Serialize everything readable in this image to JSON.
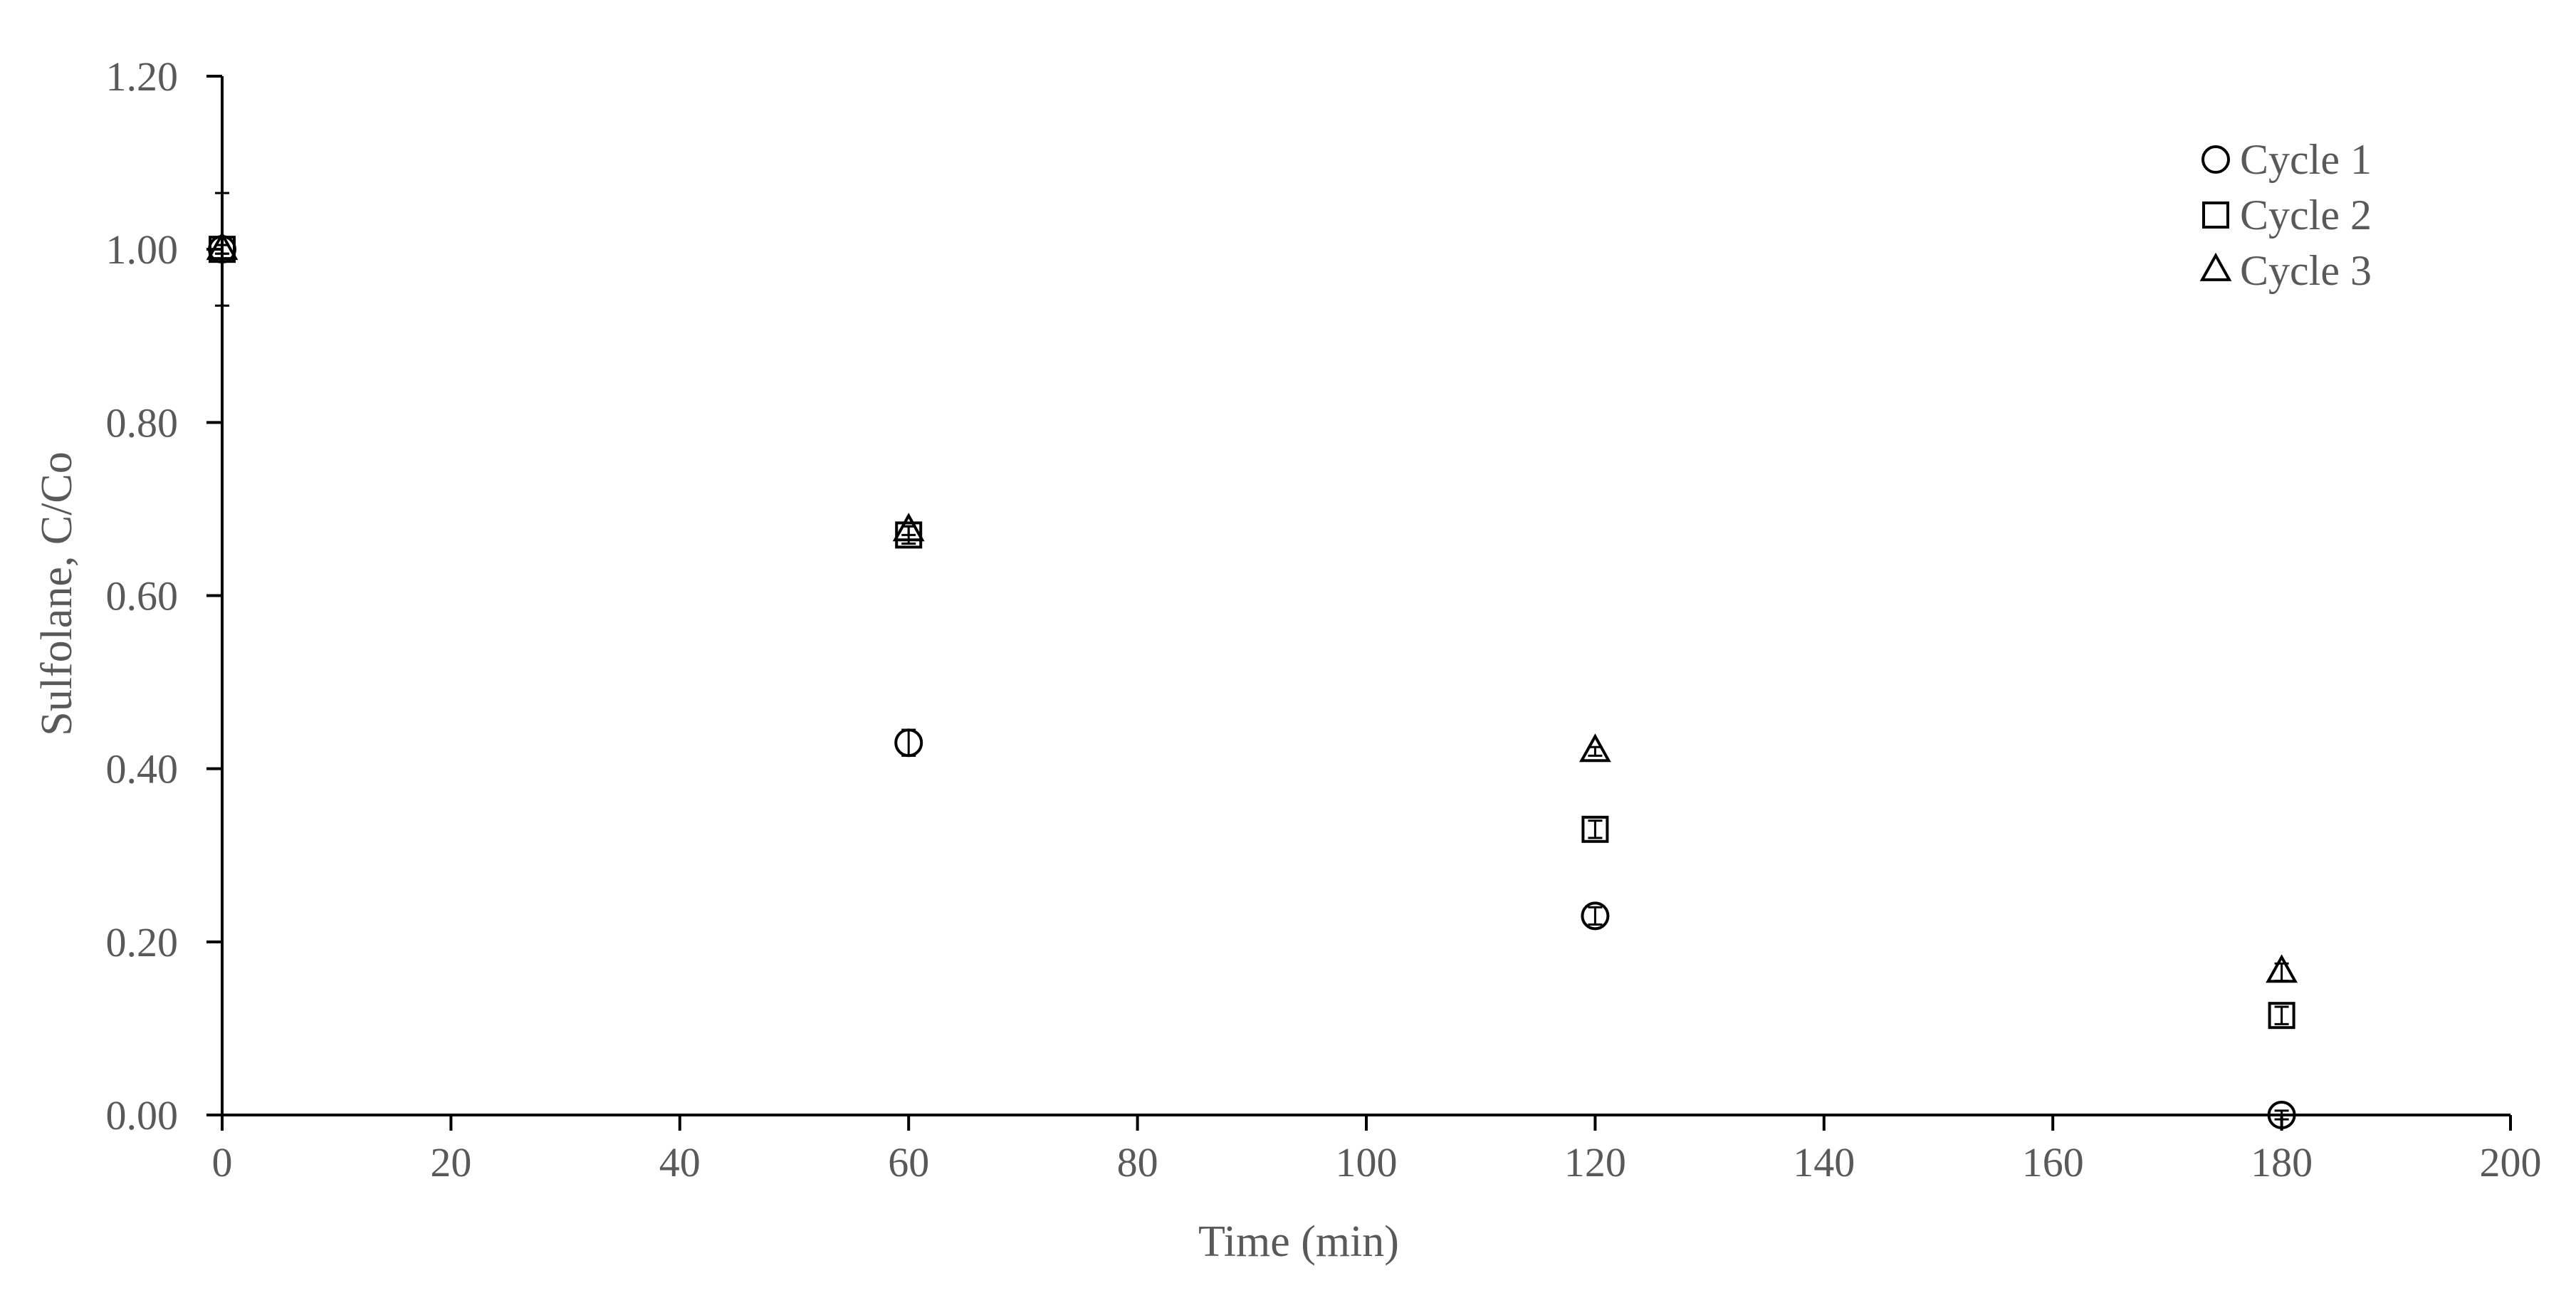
{
  "chart_data": {
    "type": "scatter",
    "title": "",
    "xlabel": "Time (min)",
    "ylabel": "Sulfolane, C/Co",
    "xlim": [
      0,
      200
    ],
    "ylim": [
      0,
      1.2
    ],
    "xticks": [
      0,
      20,
      40,
      60,
      80,
      100,
      120,
      140,
      160,
      180,
      200
    ],
    "xtick_labels": [
      "0",
      "20",
      "40",
      "60",
      "80",
      "100",
      "120",
      "140",
      "160",
      "180",
      "200"
    ],
    "yticks": [
      0,
      0.2,
      0.4,
      0.6,
      0.8,
      1.0,
      1.2
    ],
    "ytick_labels": [
      "0.00",
      "0.20",
      "0.40",
      "0.60",
      "0.80",
      "1.00",
      "1.20"
    ],
    "grid": false,
    "legend_position": "top-right",
    "series": [
      {
        "name": "Cycle 1",
        "marker": "circle",
        "color": "#000000",
        "x": [
          0,
          60,
          120,
          180
        ],
        "y": [
          1.0,
          0.43,
          0.23,
          0.0
        ],
        "error": [
          0.065,
          0.015,
          0.01,
          0.005
        ]
      },
      {
        "name": "Cycle 2",
        "marker": "square",
        "color": "#000000",
        "x": [
          0,
          60,
          120,
          180
        ],
        "y": [
          1.0,
          0.67,
          0.33,
          0.115
        ],
        "error": [
          0.005,
          0.01,
          0.01,
          0.01
        ]
      },
      {
        "name": "Cycle 3",
        "marker": "triangle",
        "color": "#000000",
        "x": [
          0,
          60,
          120,
          180
        ],
        "y": [
          1.0,
          0.675,
          0.42,
          0.165
        ],
        "error": [
          0.005,
          0.005,
          0.005,
          0.01
        ]
      }
    ]
  }
}
